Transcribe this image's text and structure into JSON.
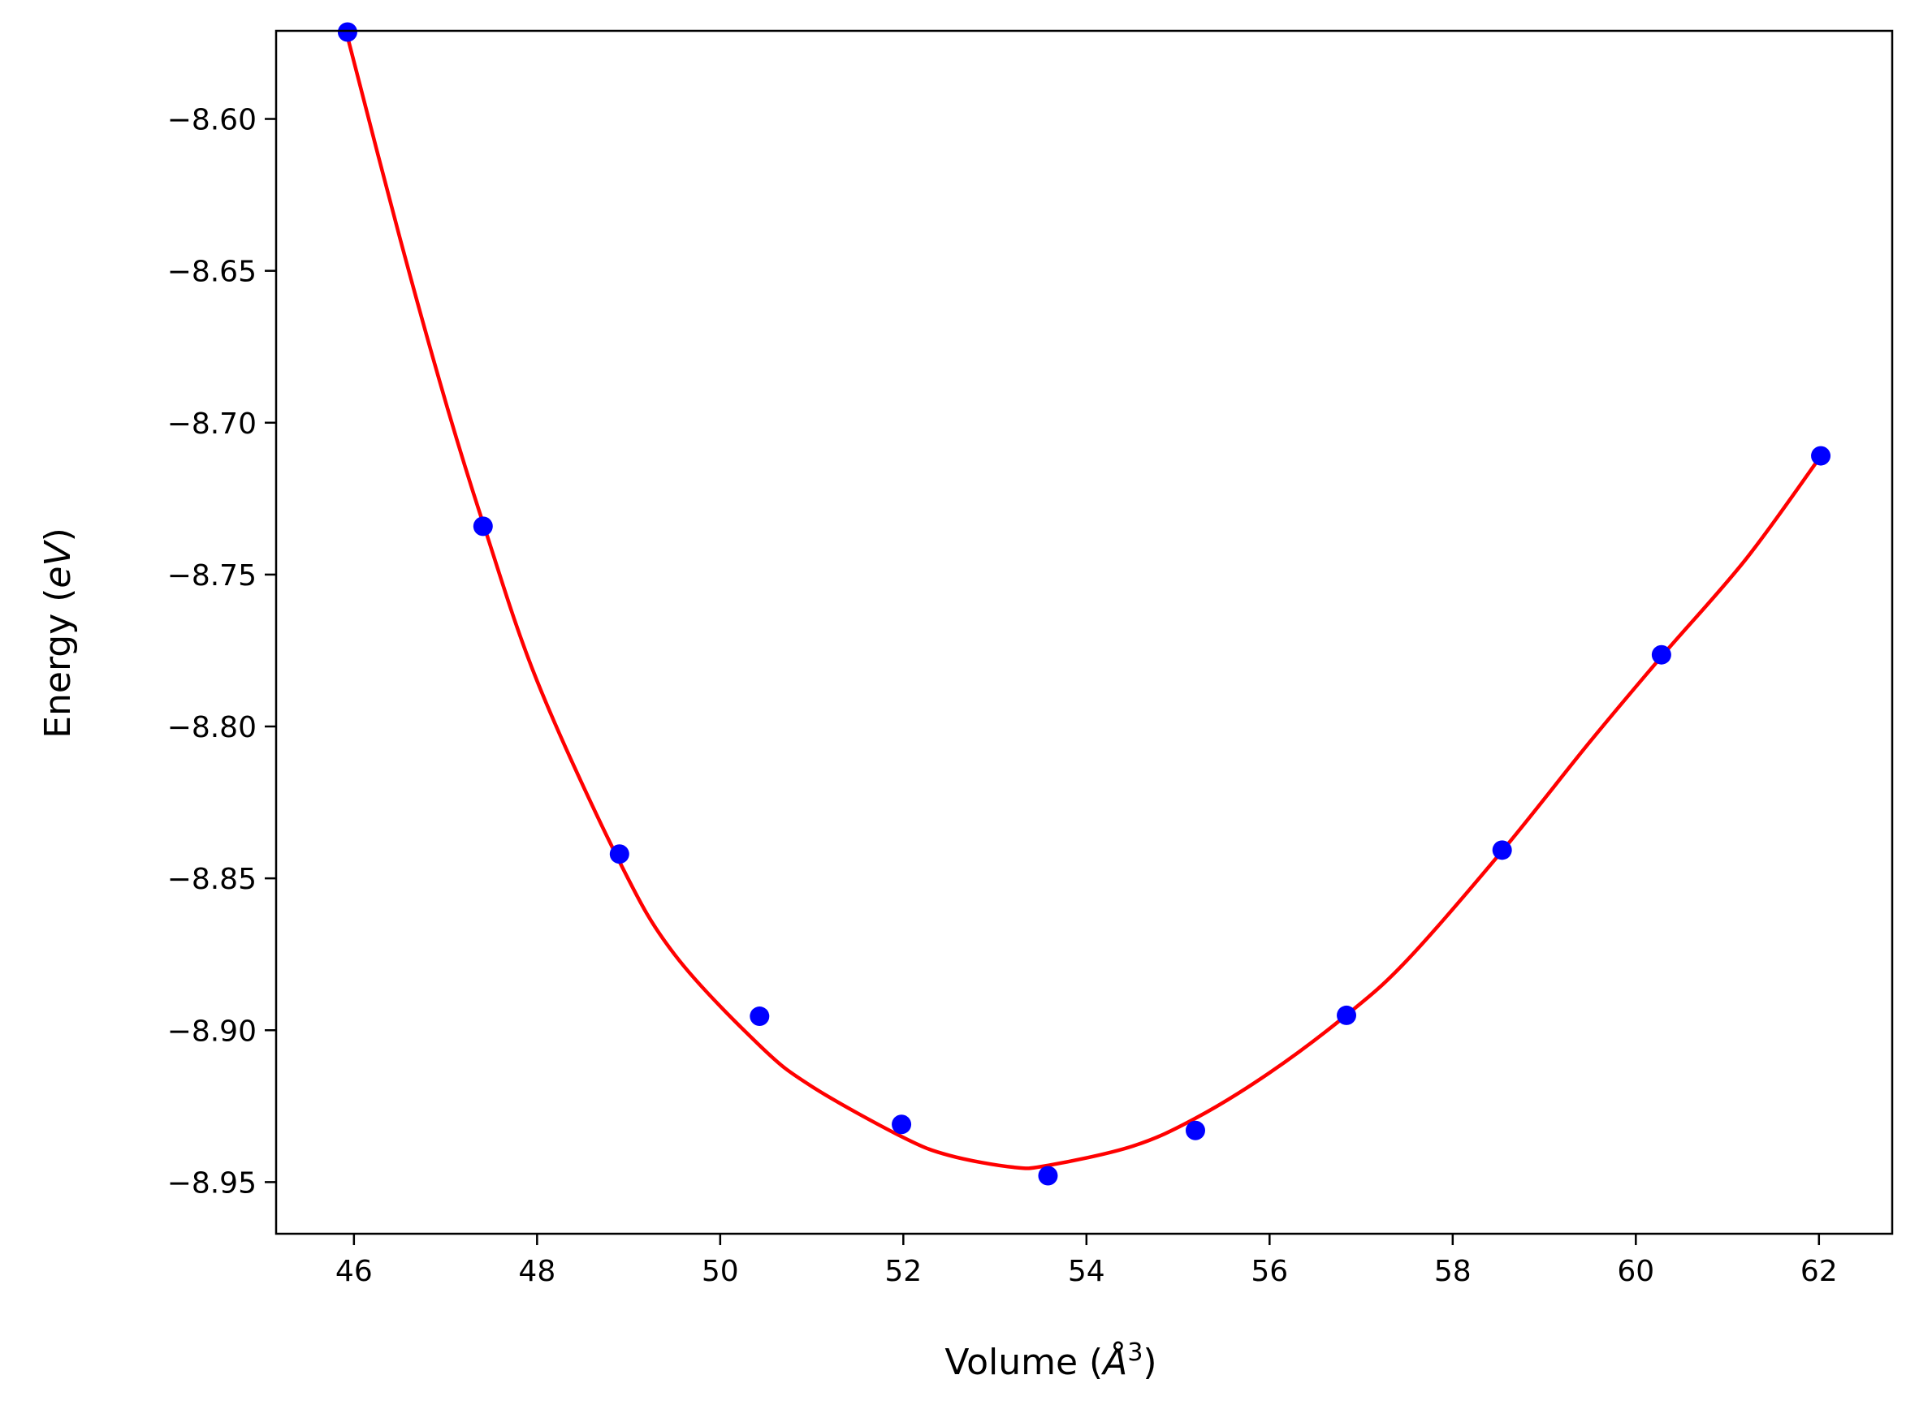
{
  "chart_data": {
    "type": "scatter",
    "title": "",
    "xlabel": {
      "pre": "Volume (",
      "sym": "Å",
      "sup": "3",
      "post": ")"
    },
    "ylabel": {
      "pre": "Energy (",
      "ital": "eV",
      "post": ")"
    },
    "xlim": [
      45.15,
      62.8
    ],
    "ylim": [
      -8.967,
      -8.571
    ],
    "xticks": [
      46,
      48,
      50,
      52,
      54,
      56,
      58,
      60,
      62
    ],
    "xtick_labels": [
      "46",
      "48",
      "50",
      "52",
      "54",
      "56",
      "58",
      "60",
      "62"
    ],
    "yticks": [
      -8.6,
      -8.65,
      -8.7,
      -8.75,
      -8.8,
      -8.85,
      -8.9,
      -8.95
    ],
    "ytick_labels": [
      "−8.60",
      "−8.65",
      "−8.70",
      "−8.75",
      "−8.80",
      "−8.85",
      "−8.90",
      "−8.95"
    ],
    "grid": false,
    "series": [
      {
        "kind": "points",
        "color": "#0000ff",
        "x": [
          45.93,
          47.41,
          48.9,
          50.43,
          51.98,
          53.58,
          55.19,
          56.84,
          58.54,
          60.28,
          62.02
        ],
        "y": [
          -8.5714,
          -8.7341,
          -8.842,
          -8.8954,
          -8.931,
          -8.9479,
          -8.933,
          -8.8951,
          -8.8407,
          -8.7764,
          -8.7109
        ]
      },
      {
        "kind": "fit-line",
        "color": "#ff0000",
        "x": [
          45.93,
          46.5,
          47.0,
          47.41,
          48.0,
          48.9,
          49.5,
          50.43,
          51.0,
          51.98,
          52.5,
          53.2,
          53.58,
          54.5,
          55.19,
          56.0,
          56.84,
          57.5,
          58.54,
          59.5,
          60.28,
          61.2,
          62.02
        ],
        "y": [
          -8.573,
          -8.639,
          -8.693,
          -8.733,
          -8.785,
          -8.8445,
          -8.875,
          -8.905,
          -8.9185,
          -8.935,
          -8.9412,
          -8.9451,
          -8.9445,
          -8.9382,
          -8.929,
          -8.914,
          -8.895,
          -8.877,
          -8.841,
          -8.805,
          -8.777,
          -8.745,
          -8.711
        ]
      }
    ]
  }
}
